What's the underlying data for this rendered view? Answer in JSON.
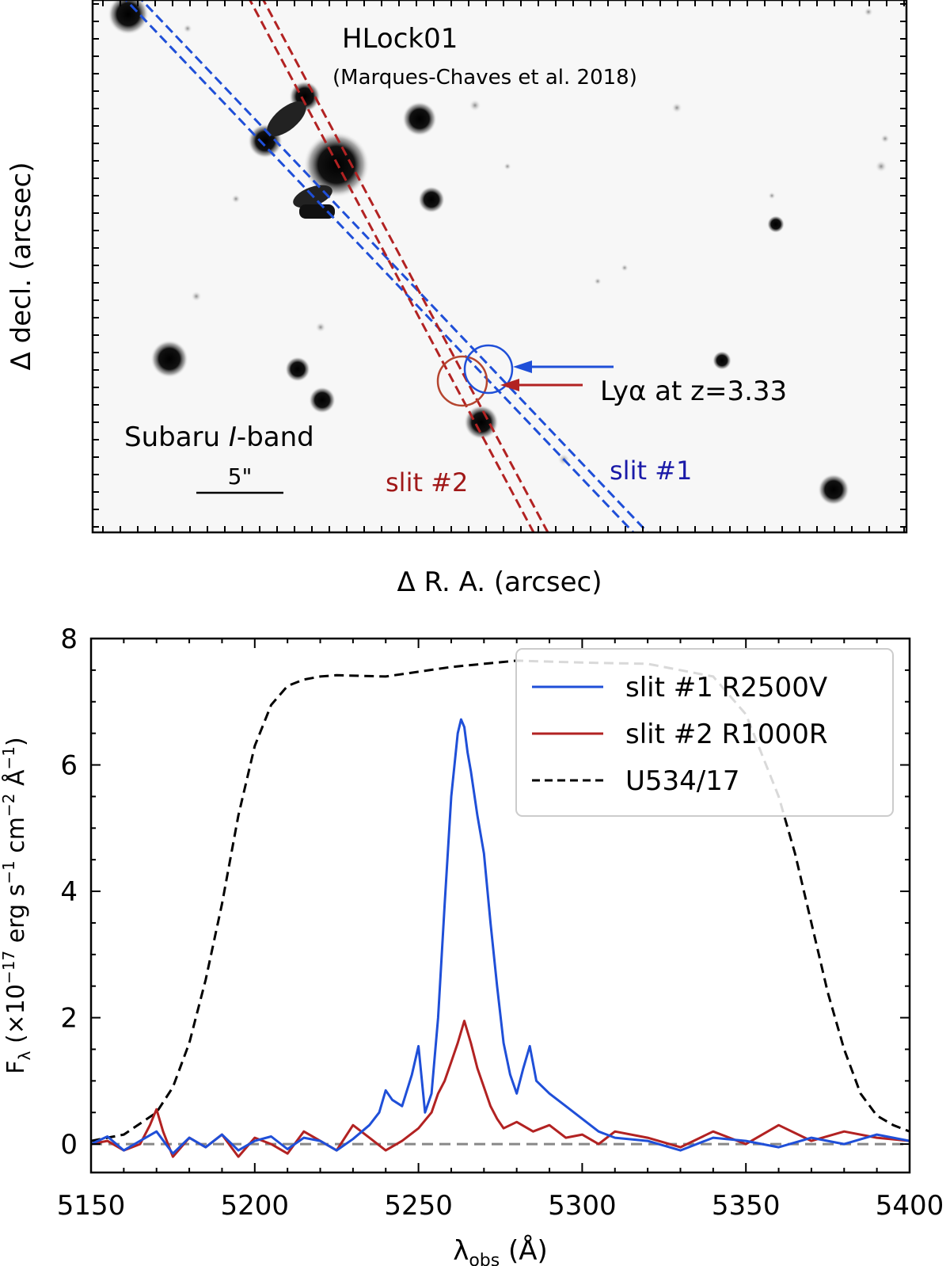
{
  "image_panel": {
    "title": "HLock01",
    "reference": "(Marques-Chaves et al. 2018)",
    "instrument_prefix": "Subaru ",
    "instrument_band": "I",
    "instrument_suffix": "-band",
    "scale_bar_label": "5\"",
    "slit1_label": "slit #1",
    "slit2_label": "slit #2",
    "lya_label": "Lyα at z=3.33",
    "xlabel": "Δ R. A.  (arcsec)",
    "ylabel": "Δ decl.  (arcsec)",
    "colors": {
      "slit1": "#1f4fd8",
      "slit2": "#b22222",
      "slit1_text": "#1a1aa8",
      "slit2_text": "#a01818"
    }
  },
  "chart_data": {
    "type": "line",
    "xlabel": "λobs (Å)",
    "ylabel": "Fλ (×10−17 erg s−1 cm−2 Å−1)",
    "xlim": [
      5150,
      5400
    ],
    "ylim": [
      -0.45,
      8.0
    ],
    "xticks": [
      5150,
      5200,
      5250,
      5300,
      5350,
      5400
    ],
    "yticks": [
      0,
      2,
      4,
      6,
      8
    ],
    "legend_position": "top-right",
    "zero_line": {
      "y": 0,
      "color": "#888888"
    },
    "series": [
      {
        "name": "slit #1 R2500V",
        "color": "#1f4fd8",
        "style": "solid",
        "x": [
          5150,
          5155,
          5160,
          5165,
          5170,
          5175,
          5180,
          5185,
          5190,
          5195,
          5200,
          5205,
          5210,
          5215,
          5220,
          5225,
          5230,
          5235,
          5238,
          5240,
          5242,
          5245,
          5248,
          5250,
          5252,
          5254,
          5256,
          5258,
          5260,
          5262,
          5263,
          5264,
          5265,
          5266,
          5268,
          5270,
          5272,
          5274,
          5276,
          5278,
          5280,
          5282,
          5284,
          5286,
          5290,
          5295,
          5300,
          5305,
          5310,
          5320,
          5330,
          5340,
          5350,
          5360,
          5370,
          5380,
          5390,
          5400
        ],
        "values": [
          0,
          0.12,
          -0.1,
          0.05,
          0.2,
          -0.15,
          0.1,
          -0.05,
          0.15,
          -0.1,
          0.05,
          0.12,
          -0.08,
          0.1,
          0.05,
          -0.1,
          0.08,
          0.3,
          0.5,
          0.85,
          0.7,
          0.6,
          1.1,
          1.55,
          0.5,
          0.8,
          2.0,
          3.8,
          5.5,
          6.5,
          6.72,
          6.6,
          6.2,
          5.9,
          5.2,
          4.6,
          3.5,
          2.5,
          1.6,
          1.1,
          0.8,
          1.2,
          1.55,
          1.0,
          0.8,
          0.6,
          0.4,
          0.2,
          0.1,
          0.05,
          -0.1,
          0.1,
          0.05,
          -0.05,
          0.1,
          0.0,
          0.15,
          0.05
        ]
      },
      {
        "name": "slit #2 R1000R",
        "color": "#b22222",
        "style": "solid",
        "x": [
          5150,
          5155,
          5160,
          5165,
          5168,
          5170,
          5172,
          5175,
          5180,
          5185,
          5190,
          5195,
          5200,
          5205,
          5210,
          5215,
          5220,
          5225,
          5230,
          5235,
          5240,
          5245,
          5250,
          5254,
          5256,
          5258,
          5260,
          5262,
          5264,
          5266,
          5268,
          5270,
          5272,
          5274,
          5276,
          5280,
          5285,
          5290,
          5295,
          5300,
          5305,
          5310,
          5320,
          5330,
          5340,
          5350,
          5360,
          5370,
          5380,
          5390,
          5400
        ],
        "values": [
          0,
          0.05,
          -0.1,
          0.0,
          0.3,
          0.55,
          0.2,
          -0.2,
          0.1,
          -0.05,
          0.15,
          -0.2,
          0.1,
          0.0,
          -0.15,
          0.2,
          0.05,
          -0.1,
          0.3,
          0.1,
          -0.1,
          0.05,
          0.25,
          0.5,
          0.8,
          1.0,
          1.3,
          1.6,
          1.95,
          1.6,
          1.2,
          0.9,
          0.6,
          0.4,
          0.25,
          0.35,
          0.2,
          0.3,
          0.1,
          0.15,
          0.0,
          0.2,
          0.1,
          -0.05,
          0.2,
          0.0,
          0.3,
          0.05,
          0.2,
          0.1,
          0.05
        ]
      },
      {
        "name": "U534/17",
        "color": "#000000",
        "style": "dashed",
        "x": [
          5150,
          5160,
          5170,
          5175,
          5180,
          5185,
          5190,
          5195,
          5200,
          5205,
          5210,
          5215,
          5220,
          5225,
          5240,
          5260,
          5280,
          5300,
          5320,
          5340,
          5350,
          5360,
          5365,
          5370,
          5375,
          5380,
          5385,
          5390,
          5395,
          5400
        ],
        "values": [
          0.05,
          0.15,
          0.5,
          0.9,
          1.6,
          2.6,
          3.8,
          5.2,
          6.3,
          6.95,
          7.25,
          7.35,
          7.4,
          7.42,
          7.4,
          7.55,
          7.65,
          7.62,
          7.6,
          7.4,
          6.8,
          5.5,
          4.6,
          3.5,
          2.4,
          1.5,
          0.8,
          0.45,
          0.3,
          0.2
        ]
      }
    ]
  }
}
